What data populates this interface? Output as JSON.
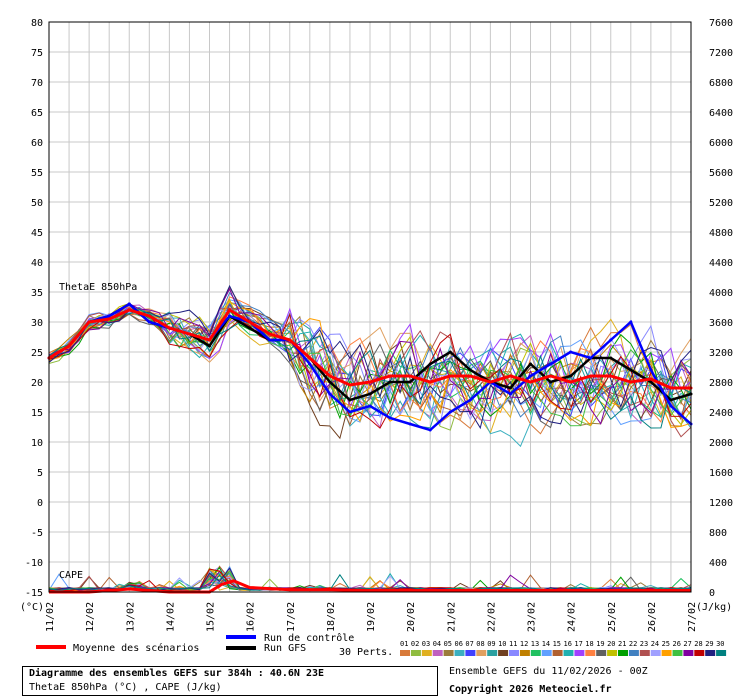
{
  "chart_data": {
    "type": "line",
    "x_dates": [
      "11/02",
      "12/02",
      "13/02",
      "14/02",
      "15/02",
      "16/02",
      "17/02",
      "18/02",
      "19/02",
      "20/02",
      "21/02",
      "22/02",
      "23/02",
      "24/02",
      "25/02",
      "26/02",
      "27/02"
    ],
    "left_axis": {
      "label": "(°C)",
      "ticks": [
        80,
        75,
        70,
        65,
        60,
        55,
        50,
        45,
        40,
        35,
        30,
        25,
        20,
        15,
        10,
        5,
        0,
        -5,
        -10,
        -15
      ],
      "range": [
        -15,
        80
      ]
    },
    "right_axis": {
      "label": "(J/kg)",
      "ticks": [
        7600,
        7200,
        6800,
        6400,
        6000,
        5600,
        5200,
        4800,
        4400,
        4000,
        3600,
        3200,
        2800,
        2400,
        2000,
        1600,
        1200,
        800,
        400,
        0
      ],
      "range": [
        0,
        7600
      ]
    },
    "panels": [
      {
        "name": "ThetaE 850hPa",
        "units": "°C"
      },
      {
        "name": "CAPE",
        "units": "J/kg"
      }
    ],
    "series_theta": [
      {
        "name": "Moyenne des scénarios",
        "color": "#ff0000",
        "x": [
          0,
          0.5,
          1,
          1.5,
          2,
          2.5,
          3,
          3.5,
          4,
          4.5,
          5,
          5.5,
          6,
          6.5,
          7,
          7.5,
          8,
          8.5,
          9,
          9.5,
          10,
          10.5,
          11,
          11.5,
          12,
          12.5,
          13,
          13.5,
          14,
          14.5,
          15,
          15.5,
          16
        ],
        "y": [
          24,
          26,
          30,
          30.5,
          32,
          31,
          29,
          28,
          27,
          32,
          30,
          28,
          27,
          24,
          21,
          19.5,
          20,
          21,
          21,
          20,
          21,
          21,
          20,
          21,
          20,
          21,
          20,
          21,
          21,
          20,
          20.5,
          19,
          19
        ]
      },
      {
        "name": "Run de contrôle",
        "color": "#0000ff",
        "x": [
          0,
          0.5,
          1,
          1.5,
          2,
          2.5,
          3,
          3.5,
          4,
          4.5,
          5,
          5.5,
          6,
          6.5,
          7,
          7.5,
          8,
          8.5,
          9,
          9.5,
          10,
          10.5,
          11,
          11.5,
          12,
          12.5,
          13,
          13.5,
          14,
          14.5,
          15,
          15.5,
          16
        ],
        "y": [
          24,
          26,
          30,
          31,
          33,
          30,
          29,
          28,
          27,
          31,
          30,
          27,
          27,
          23,
          18,
          15,
          16,
          14,
          13,
          12,
          15,
          17,
          20,
          18,
          21,
          23,
          25,
          24,
          27,
          30,
          22,
          16,
          13
        ]
      },
      {
        "name": "Run GFS",
        "color": "#000000",
        "x": [
          0,
          0.5,
          1,
          1.5,
          2,
          2.5,
          3,
          3.5,
          4,
          4.5,
          5,
          5.5,
          6,
          6.5,
          7,
          7.5,
          8,
          8.5,
          9,
          9.5,
          10,
          10.5,
          11,
          11.5,
          12,
          12.5,
          13,
          13.5,
          14,
          14.5,
          15,
          15.5,
          16
        ],
        "y": [
          24,
          26,
          30,
          31,
          33,
          30,
          29,
          28,
          26,
          31,
          29,
          27,
          27,
          24,
          20,
          17,
          18,
          20,
          20,
          23,
          25,
          22,
          20,
          19,
          23,
          20,
          21,
          24,
          24,
          22,
          20,
          17,
          18
        ]
      }
    ],
    "series_cape": [
      {
        "name": "Moyenne des scénarios",
        "color": "#ff0000",
        "x": [
          0,
          1,
          2,
          3,
          4,
          4.3,
          4.6,
          5,
          6,
          7,
          8,
          9,
          10,
          11,
          12,
          13,
          14,
          15,
          16
        ],
        "y": [
          0,
          0,
          40,
          0,
          0,
          100,
          150,
          60,
          30,
          30,
          20,
          20,
          20,
          20,
          20,
          20,
          20,
          20,
          20
        ]
      }
    ],
    "legend": [
      {
        "label": "Moyenne des scénarios",
        "color": "#ff0000"
      },
      {
        "label": "Run de contrôle",
        "color": "#0000ff"
      },
      {
        "label": "Run GFS",
        "color": "#000000"
      }
    ],
    "perts_label": "30 Perts.",
    "perts_numbers": [
      "01",
      "02",
      "03",
      "04",
      "05",
      "06",
      "07",
      "08",
      "09",
      "10",
      "11",
      "12",
      "13",
      "14",
      "15",
      "16",
      "17",
      "18",
      "19",
      "20",
      "21",
      "22",
      "23",
      "24",
      "25",
      "26",
      "27",
      "28",
      "29",
      "30"
    ],
    "perts_colors": [
      "#d87a3a",
      "#8fbc3f",
      "#e0b020",
      "#c060c0",
      "#9b7b3b",
      "#3bb0c0",
      "#4040ff",
      "#e0a060",
      "#2aa0a0",
      "#704020",
      "#8888ff",
      "#c08000",
      "#20c060",
      "#60a0ff",
      "#b06030",
      "#20b0b0",
      "#a040ff",
      "#ff8040",
      "#606060",
      "#c0c000",
      "#00a000",
      "#4080c0",
      "#b05050",
      "#a0a0ff",
      "#ffa000",
      "#40c040",
      "#8000a0",
      "#c00000",
      "#202080",
      "#008080"
    ],
    "grid": true
  },
  "info": {
    "title_line": "Diagramme des ensembles GEFS sur 384h : 40.6N 23E",
    "subtitle_line": "ThetaE 850hPa (°C) , CAPE (J/kg)",
    "run_line": "Ensemble GEFS du 11/02/2026 - 00Z",
    "copyright_line": "Copyright 2026 Meteociel.fr"
  }
}
